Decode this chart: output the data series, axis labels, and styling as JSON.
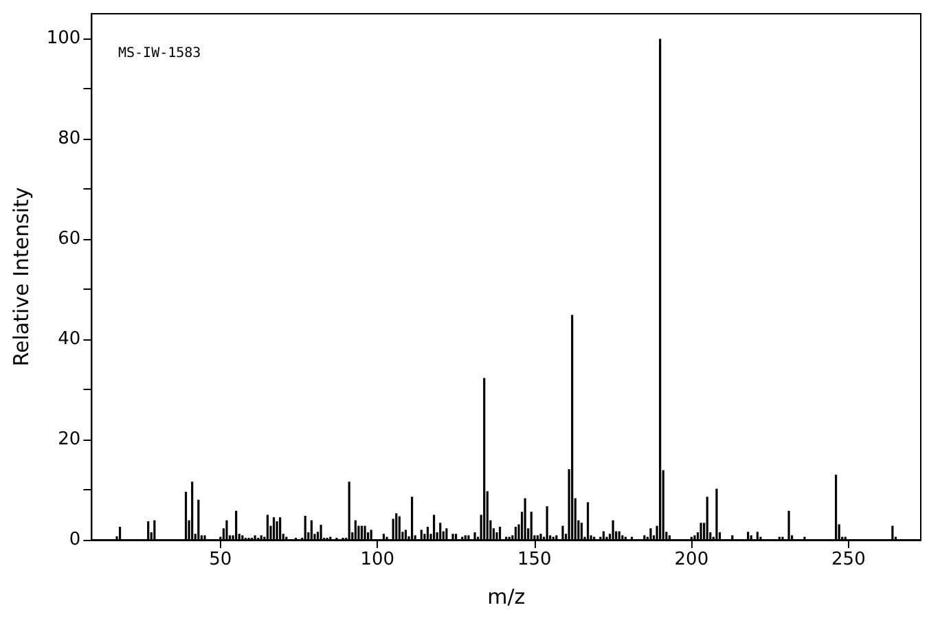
{
  "chart_data": {
    "type": "bar",
    "xlabel": "m/z",
    "ylabel": "Relative Intensity",
    "annotations": [
      "MS-IW-1583"
    ],
    "x": [
      17,
      18,
      27,
      28,
      29,
      39,
      40,
      41,
      42,
      43,
      44,
      45,
      50,
      51,
      52,
      53,
      54,
      55,
      56,
      57,
      58,
      59,
      60,
      61,
      62,
      63,
      64,
      65,
      66,
      67,
      68,
      69,
      70,
      71,
      74,
      76,
      77,
      78,
      79,
      80,
      81,
      82,
      83,
      84,
      85,
      87,
      89,
      90,
      91,
      92,
      93,
      94,
      95,
      96,
      97,
      98,
      102,
      103,
      105,
      106,
      107,
      108,
      109,
      110,
      111,
      112,
      114,
      115,
      116,
      117,
      118,
      119,
      120,
      121,
      122,
      124,
      125,
      127,
      128,
      129,
      131,
      132,
      133,
      134,
      135,
      136,
      137,
      138,
      139,
      141,
      142,
      143,
      144,
      145,
      146,
      147,
      148,
      149,
      150,
      151,
      152,
      153,
      154,
      155,
      156,
      157,
      159,
      160,
      161,
      162,
      163,
      164,
      165,
      166,
      167,
      168,
      169,
      171,
      172,
      173,
      174,
      175,
      176,
      177,
      178,
      179,
      181,
      185,
      186,
      187,
      188,
      189,
      190,
      191,
      192,
      193,
      200,
      201,
      202,
      203,
      204,
      205,
      206,
      207,
      208,
      209,
      213,
      218,
      219,
      221,
      222,
      228,
      229,
      231,
      232,
      236,
      246,
      247,
      248,
      249,
      264,
      265
    ],
    "values": [
      0.7,
      2.6,
      3.7,
      1.5,
      3.9,
      9.6,
      3.9,
      11.6,
      1.2,
      8.0,
      0.9,
      0.9,
      0.6,
      2.3,
      3.9,
      0.9,
      0.9,
      5.8,
      1.2,
      0.9,
      0.4,
      0.4,
      0.4,
      0.9,
      0.4,
      0.9,
      0.6,
      5.0,
      2.8,
      4.5,
      3.7,
      4.5,
      1.2,
      0.6,
      0.4,
      0.4,
      4.8,
      1.5,
      3.9,
      1.2,
      1.6,
      3.0,
      0.4,
      0.4,
      0.6,
      0.4,
      0.4,
      0.4,
      11.6,
      1.5,
      3.9,
      2.8,
      2.8,
      2.8,
      1.5,
      2.0,
      1.2,
      0.6,
      4.2,
      5.3,
      4.7,
      1.6,
      2.0,
      0.7,
      8.6,
      0.9,
      2.0,
      1.2,
      2.6,
      1.2,
      5.0,
      1.5,
      3.4,
      1.7,
      2.3,
      1.2,
      1.2,
      0.6,
      0.9,
      0.9,
      1.5,
      0.6,
      5.0,
      32.3,
      9.7,
      3.9,
      2.3,
      1.5,
      2.6,
      0.6,
      0.6,
      0.9,
      2.6,
      3.1,
      5.6,
      8.3,
      2.3,
      5.6,
      0.9,
      0.9,
      1.2,
      0.6,
      6.7,
      0.9,
      0.6,
      0.9,
      2.8,
      1.2,
      14.1,
      44.9,
      8.3,
      3.9,
      3.4,
      0.6,
      7.5,
      0.9,
      0.6,
      0.6,
      1.7,
      0.6,
      1.2,
      3.9,
      1.7,
      1.7,
      0.9,
      0.6,
      0.6,
      0.9,
      0.6,
      2.3,
      0.9,
      2.8,
      100,
      13.9,
      1.6,
      0.9,
      0.6,
      0.9,
      1.5,
      3.4,
      3.4,
      8.6,
      1.5,
      0.6,
      10.2,
      1.5,
      0.9,
      1.6,
      0.9,
      1.6,
      0.6,
      0.6,
      0.6,
      5.8,
      0.9,
      0.6,
      13.0,
      3.1,
      0.6,
      0.6,
      2.8,
      0.6
    ],
    "color": "#000000",
    "xlim": [
      9,
      273
    ],
    "xticks": [
      50,
      100,
      150,
      200,
      250
    ],
    "ylim": [
      0,
      105
    ],
    "yticks": [
      0,
      {
        "value": 10,
        "label": null
      },
      20,
      {
        "value": 30,
        "label": null
      },
      40,
      {
        "value": 50,
        "label": null
      },
      60,
      {
        "value": 70,
        "label": null
      },
      80,
      {
        "value": 90,
        "label": null
      },
      100
    ],
    "grid": false
  }
}
